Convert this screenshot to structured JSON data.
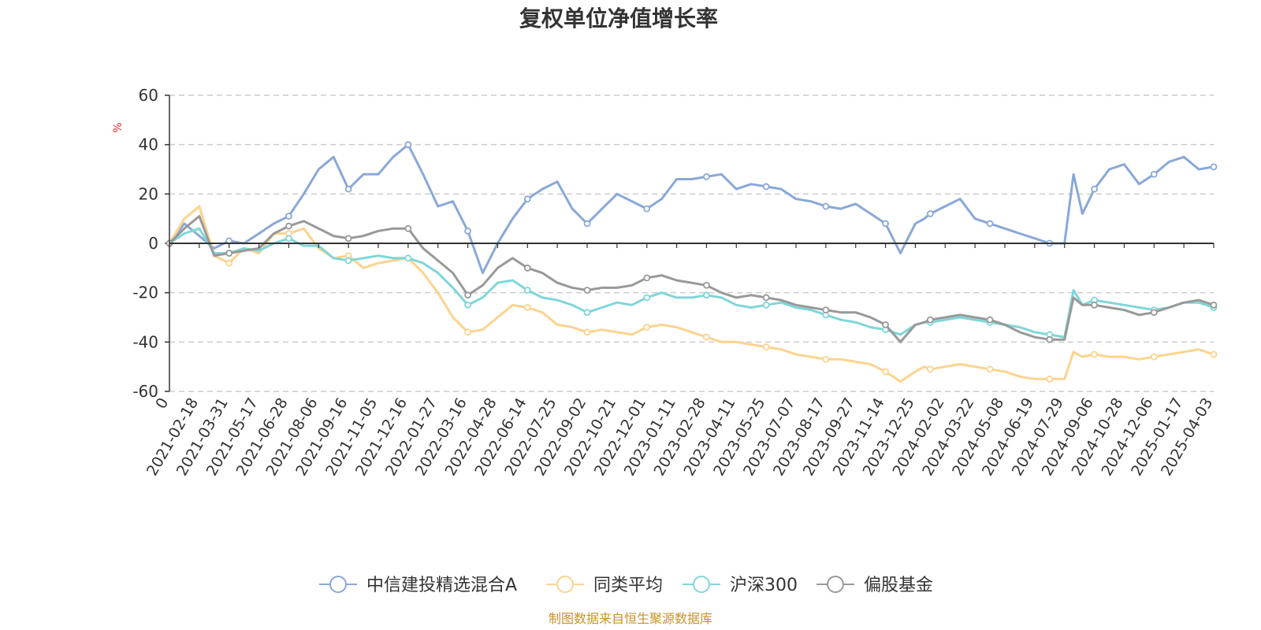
{
  "chart_data": {
    "type": "line",
    "title": "复权单位净值增长率",
    "ylabel": "%",
    "ylim": [
      -60,
      60
    ],
    "yticks": [
      -60,
      -40,
      -20,
      0,
      20,
      40,
      60
    ],
    "x_start_label": "0",
    "x_tick_labels": [
      "2021-02-18",
      "2021-03-31",
      "2021-05-17",
      "2021-06-28",
      "2021-08-06",
      "2021-09-16",
      "2021-11-05",
      "2021-12-16",
      "2022-01-27",
      "2022-03-16",
      "2022-04-28",
      "2022-06-14",
      "2022-07-25",
      "2022-09-02",
      "2022-10-21",
      "2022-12-01",
      "2023-01-11",
      "2023-02-28",
      "2023-04-11",
      "2023-05-25",
      "2023-07-07",
      "2023-08-17",
      "2023-09-27",
      "2023-11-14",
      "2023-12-25",
      "2024-02-02",
      "2024-03-22",
      "2024-05-08",
      "2024-06-19",
      "2024-07-29",
      "2024-09-06",
      "2024-10-28",
      "2024-12-06",
      "2025-01-17",
      "2025-04-03"
    ],
    "x_domain": [
      0,
      35
    ],
    "series": [
      {
        "name": "中信建投精选混合A",
        "color": "#8aa8d8",
        "x": [
          0,
          0.5,
          1,
          1.5,
          2,
          2.5,
          3,
          3.5,
          4,
          4.5,
          5,
          5.5,
          6,
          6.5,
          7,
          7.5,
          8,
          8.5,
          9,
          9.5,
          10,
          10.5,
          11,
          11.5,
          12,
          12.5,
          13,
          13.5,
          14,
          14.5,
          15,
          15.5,
          16,
          16.5,
          17,
          17.5,
          18,
          18.5,
          19,
          19.5,
          20,
          20.5,
          21,
          21.5,
          22,
          22.5,
          23,
          23.5,
          24,
          24.5,
          25,
          25.3,
          25.5,
          26,
          26.5,
          27,
          27.5,
          28,
          28.5,
          29,
          29.5,
          30,
          30.3,
          30.6,
          31,
          31.5,
          32,
          32.5,
          33,
          33.5,
          34,
          34.5,
          35
        ],
        "y": [
          0,
          8,
          3,
          -2,
          1,
          0,
          4,
          8,
          11,
          20,
          30,
          35,
          22,
          28,
          28,
          35,
          40,
          28,
          15,
          17,
          5,
          -12,
          0,
          10,
          18,
          22,
          25,
          14,
          8,
          14,
          20,
          17,
          14,
          18,
          26,
          26,
          27,
          28,
          22,
          24,
          23,
          22,
          18,
          17,
          15,
          14,
          16,
          12,
          8,
          -4,
          8,
          10,
          12,
          15,
          18,
          10,
          8,
          6,
          4,
          2,
          0,
          0,
          28,
          12,
          22,
          30,
          32,
          24,
          28,
          33,
          35,
          30,
          31
        ]
      },
      {
        "name": "同类平均",
        "color": "#fcd38e",
        "x": [
          0,
          0.5,
          1,
          1.5,
          2,
          2.5,
          3,
          3.5,
          4,
          4.5,
          5,
          5.5,
          6,
          6.5,
          7,
          7.5,
          8,
          8.5,
          9,
          9.5,
          10,
          10.5,
          11,
          11.5,
          12,
          12.5,
          13,
          13.5,
          14,
          14.5,
          15,
          15.5,
          16,
          16.5,
          17,
          17.5,
          18,
          18.5,
          19,
          19.5,
          20,
          20.5,
          21,
          21.5,
          22,
          22.5,
          23,
          23.5,
          24,
          24.5,
          25,
          25.3,
          25.5,
          26,
          26.5,
          27,
          27.5,
          28,
          28.5,
          29,
          29.5,
          30,
          30.3,
          30.6,
          31,
          31.5,
          32,
          32.5,
          33,
          33.5,
          34,
          34.5,
          35
        ],
        "y": [
          0,
          10,
          15,
          -5,
          -8,
          -2,
          -4,
          4,
          4,
          6,
          -2,
          -6,
          -5,
          -10,
          -8,
          -7,
          -6,
          -12,
          -20,
          -30,
          -36,
          -35,
          -30,
          -25,
          -26,
          -28,
          -33,
          -34,
          -36,
          -35,
          -36,
          -37,
          -34,
          -33,
          -34,
          -36,
          -38,
          -40,
          -40,
          -41,
          -42,
          -43,
          -45,
          -46,
          -47,
          -47,
          -48,
          -49,
          -52,
          -56,
          -52,
          -50,
          -51,
          -50,
          -49,
          -50,
          -51,
          -52,
          -54,
          -55,
          -55,
          -55,
          -44,
          -46,
          -45,
          -46,
          -46,
          -47,
          -46,
          -45,
          -44,
          -43,
          -45
        ]
      },
      {
        "name": "沪深300",
        "color": "#7fd6d9",
        "x": [
          0,
          0.5,
          1,
          1.5,
          2,
          2.5,
          3,
          3.5,
          4,
          4.5,
          5,
          5.5,
          6,
          6.5,
          7,
          7.5,
          8,
          8.5,
          9,
          9.5,
          10,
          10.5,
          11,
          11.5,
          12,
          12.5,
          13,
          13.5,
          14,
          14.5,
          15,
          15.5,
          16,
          16.5,
          17,
          17.5,
          18,
          18.5,
          19,
          19.5,
          20,
          20.5,
          21,
          21.5,
          22,
          22.5,
          23,
          23.5,
          24,
          24.5,
          25,
          25.3,
          25.5,
          26,
          26.5,
          27,
          27.5,
          28,
          28.5,
          29,
          29.5,
          30,
          30.3,
          30.6,
          31,
          31.5,
          32,
          32.5,
          33,
          33.5,
          34,
          34.5,
          35
        ],
        "y": [
          0,
          4,
          6,
          -4,
          -4,
          -2,
          -3,
          0,
          2,
          -1,
          -1,
          -6,
          -7,
          -6,
          -5,
          -6,
          -6,
          -8,
          -12,
          -18,
          -25,
          -22,
          -16,
          -15,
          -19,
          -22,
          -23,
          -25,
          -28,
          -26,
          -24,
          -25,
          -22,
          -20,
          -22,
          -22,
          -21,
          -22,
          -25,
          -26,
          -25,
          -24,
          -26,
          -27,
          -29,
          -31,
          -32,
          -34,
          -35,
          -37,
          -33,
          -32,
          -32,
          -31,
          -30,
          -31,
          -32,
          -33,
          -34,
          -36,
          -37,
          -38,
          -19,
          -25,
          -23,
          -24,
          -25,
          -26,
          -27,
          -26,
          -24,
          -24,
          -26
        ]
      },
      {
        "name": "偏股基金",
        "color": "#999999",
        "x": [
          0,
          0.5,
          1,
          1.5,
          2,
          2.5,
          3,
          3.5,
          4,
          4.5,
          5,
          5.5,
          6,
          6.5,
          7,
          7.5,
          8,
          8.5,
          9,
          9.5,
          10,
          10.5,
          11,
          11.5,
          12,
          12.5,
          13,
          13.5,
          14,
          14.5,
          15,
          15.5,
          16,
          16.5,
          17,
          17.5,
          18,
          18.5,
          19,
          19.5,
          20,
          20.5,
          21,
          21.5,
          22,
          22.5,
          23,
          23.5,
          24,
          24.5,
          25,
          25.3,
          25.5,
          26,
          26.5,
          27,
          27.5,
          28,
          28.5,
          29,
          29.5,
          30,
          30.3,
          30.6,
          31,
          31.5,
          32,
          32.5,
          33,
          33.5,
          34,
          34.5,
          35
        ],
        "y": [
          0,
          6,
          11,
          -5,
          -4,
          -3,
          -2,
          4,
          7,
          9,
          6,
          3,
          2,
          3,
          5,
          6,
          6,
          -2,
          -7,
          -12,
          -21,
          -17,
          -10,
          -6,
          -10,
          -12,
          -16,
          -18,
          -19,
          -18,
          -18,
          -17,
          -14,
          -13,
          -15,
          -16,
          -17,
          -20,
          -22,
          -21,
          -22,
          -23,
          -25,
          -26,
          -27,
          -28,
          -28,
          -30,
          -33,
          -40,
          -33,
          -32,
          -31,
          -30,
          -29,
          -30,
          -31,
          -33,
          -36,
          -38,
          -39,
          -39,
          -22,
          -25,
          -25,
          -26,
          -27,
          -29,
          -28,
          -26,
          -24,
          -23,
          -25
        ]
      }
    ],
    "legend_position": "bottom-center"
  },
  "footer": {
    "source": "制图数据来自恒生聚源数据库"
  }
}
